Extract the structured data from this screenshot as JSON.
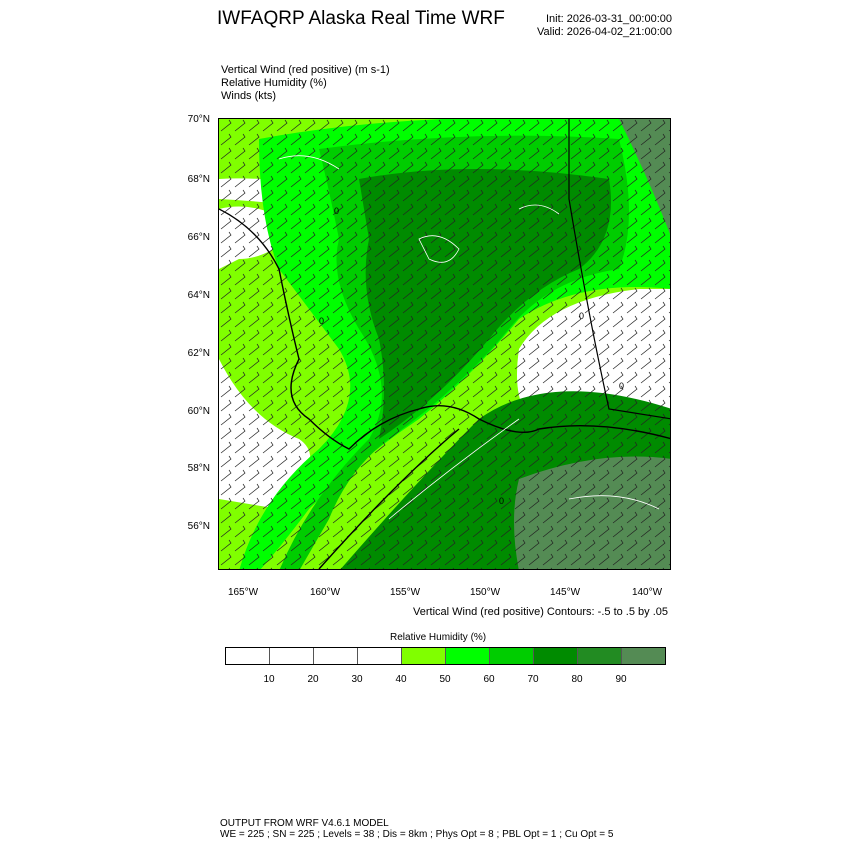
{
  "header": {
    "title": "IWFAQRP Alaska Real Time WRF",
    "init": "Init: 2026-03-31_00:00:00",
    "valid": "Valid: 2026-04-02_21:00:00"
  },
  "fields": [
    "Vertical Wind (red positive)   (m s-1)",
    "Relative Humidity   (%)",
    "Winds   (kts)"
  ],
  "map": {
    "lat_labels": [
      "70°N",
      "68°N",
      "66°N",
      "64°N",
      "62°N",
      "60°N",
      "58°N",
      "56°N"
    ],
    "lon_labels": [
      "165°W",
      "160°W",
      "155°W",
      "150°W",
      "145°W",
      "140°W"
    ],
    "contour_label": "0"
  },
  "contour_note": "Vertical Wind (red positive) Contours: -.5 to .5 by .05",
  "colorbar": {
    "title": "Relative Humidity  (%)",
    "labels": [
      "10",
      "20",
      "30",
      "40",
      "50",
      "60",
      "70",
      "80",
      "90"
    ],
    "colors": [
      "#ffffff",
      "#ffffff",
      "#ffffff",
      "#ffffff",
      "#80ff00",
      "#00ff00",
      "#00cd00",
      "#008b00",
      "#228b22",
      "#548b54"
    ]
  },
  "footer": {
    "line1": "OUTPUT FROM WRF V4.6.1 MODEL",
    "line2": "WE = 225 ; SN = 225 ; Levels = 38 ; Dis = 8km ; Phys Opt = 8 ; PBL Opt = 1 ; Cu Opt = 5"
  }
}
